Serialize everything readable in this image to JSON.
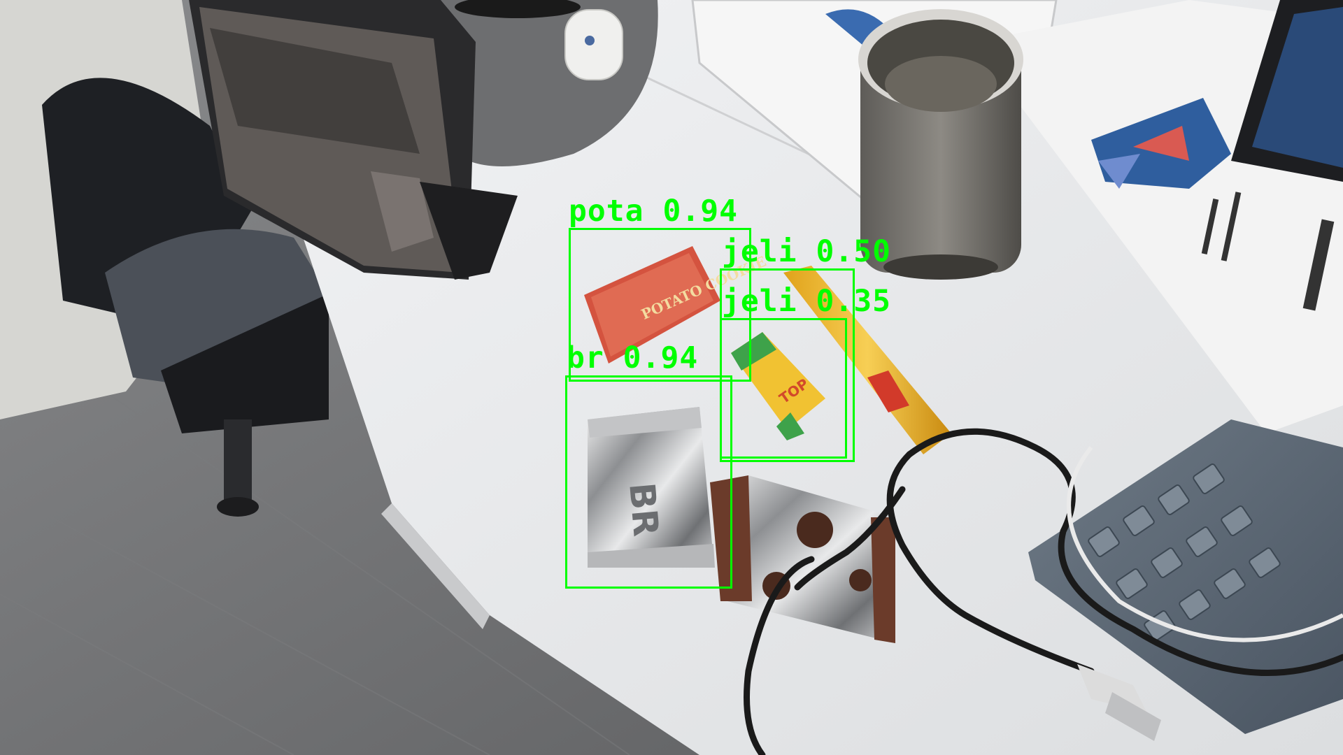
{
  "image": {
    "description_kind": "photo of desk with object-detection overlay"
  },
  "detections": [
    {
      "label": "pota",
      "score": "0.94",
      "text": "pota 0.94"
    },
    {
      "label": "jeli",
      "score": "0.50",
      "text": "jeli 0.50"
    },
    {
      "label": "jeli",
      "score": "0.35",
      "text": "jeli 0.35"
    },
    {
      "label": "br",
      "score": "0.94",
      "text": "br 0.94"
    }
  ],
  "packaging": {
    "potato_cookie": "POTATO\nCOOKIE",
    "br_pack": "BR",
    "top_fruits": "TOP\nFRUITS"
  },
  "colors": {
    "detection_box": "#00ff00",
    "desk": "#e9eaec",
    "floor": "#6b6c6e"
  }
}
